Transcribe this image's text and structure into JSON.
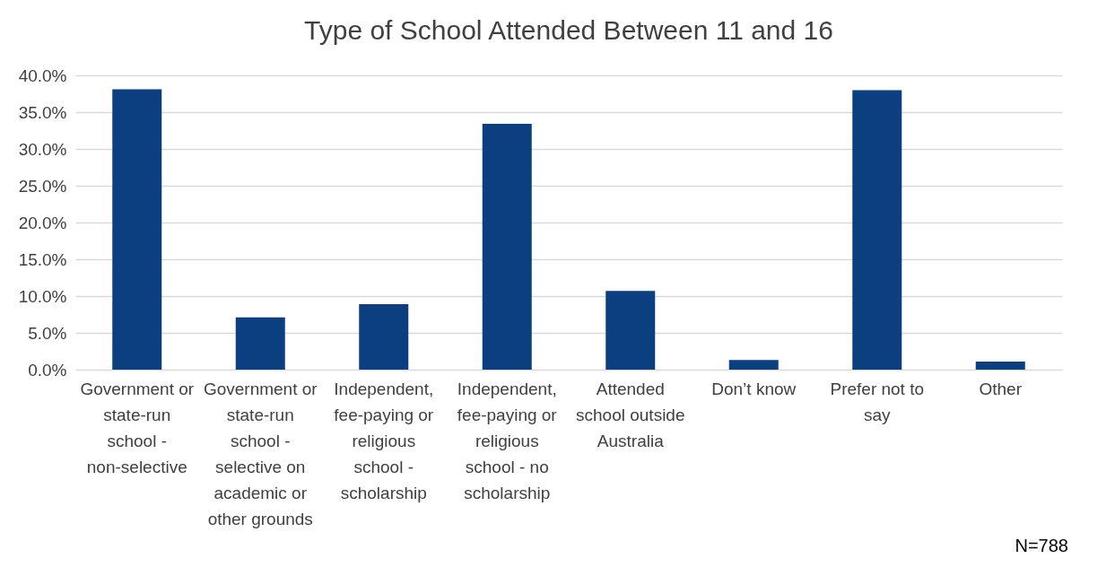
{
  "chart_data": {
    "type": "bar",
    "title": "Type of School Attended Between 11 and 16",
    "categories": [
      "Government or state-run school - non-selective",
      "Government or state-run school - selective on academic or other grounds",
      "Independent, fee-paying or religious school - scholarship",
      "Independent, fee-paying or religious school - no scholarship",
      "Attended school outside Australia",
      "Don’t know",
      "Prefer not to say",
      "Other"
    ],
    "values": [
      38.1,
      7.1,
      8.9,
      33.4,
      10.7,
      1.3,
      38.0,
      1.1
    ],
    "color": "#0b3f7f",
    "ylim": [
      0,
      40
    ],
    "yticks": [
      {
        "value": 0,
        "label": "0.0%"
      },
      {
        "value": 5,
        "label": "5.0%"
      },
      {
        "value": 10,
        "label": "10.0%"
      },
      {
        "value": 15,
        "label": "15.0%"
      },
      {
        "value": 20,
        "label": "20.0%"
      },
      {
        "value": 25,
        "label": "25.0%"
      },
      {
        "value": 30,
        "label": "30.0%"
      },
      {
        "value": 35,
        "label": "35.0%"
      },
      {
        "value": 40,
        "label": "40.0%"
      }
    ],
    "grid": "y",
    "annotations": [
      "N=788"
    ]
  }
}
